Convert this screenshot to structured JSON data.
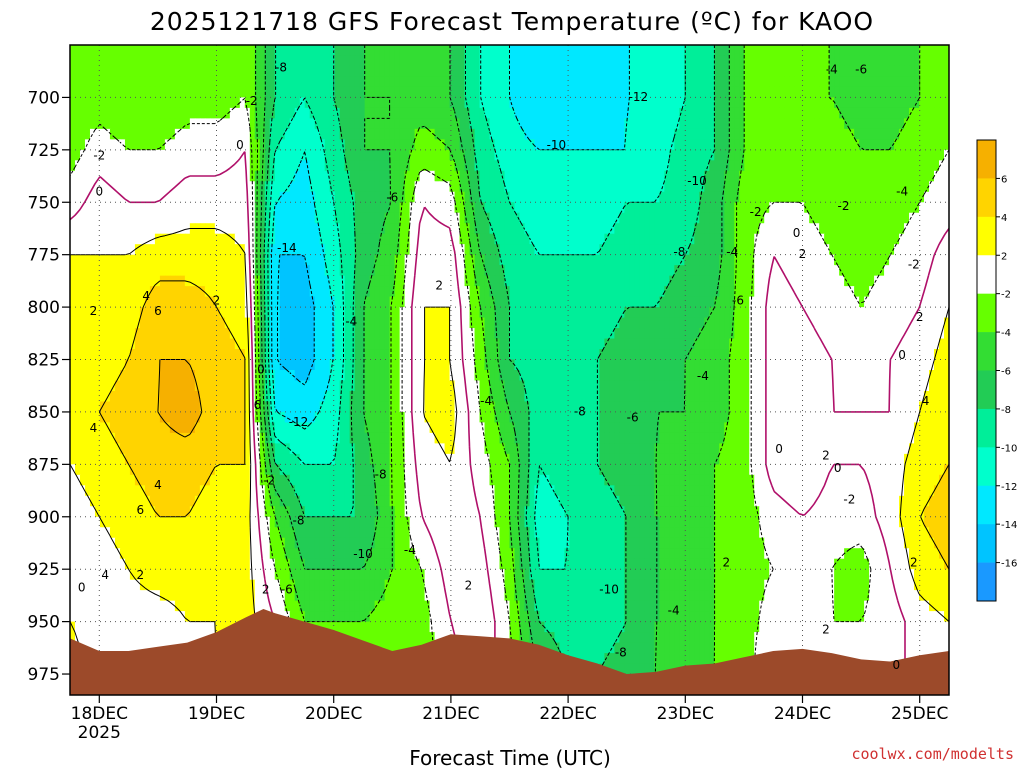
{
  "chart_data": {
    "type": "contour",
    "title": "2025121718 GFS Forecast Temperature (ºC) for KAOO",
    "xlabel": "Forecast Time (UTC)",
    "ylabel": "",
    "x_ticks": [
      "18DEC",
      "19DEC",
      "20DEC",
      "21DEC",
      "22DEC",
      "23DEC",
      "24DEC",
      "25DEC"
    ],
    "x_year_label": "2025",
    "y_ticks": [
      700,
      725,
      750,
      775,
      800,
      825,
      850,
      875,
      900,
      925,
      950,
      975
    ],
    "y_range": [
      675,
      985
    ],
    "x_range_days": [
      17.75,
      25.25
    ],
    "grid": true,
    "colorbar": {
      "labels": [
        "6",
        "4",
        "2",
        "-2",
        "-4",
        "-6",
        "-8",
        "-10",
        "-12",
        "-14",
        "-16"
      ],
      "colors": [
        "#f6b000",
        "#ffd400",
        "#ffff00",
        "#ffffff",
        "#66ff00",
        "#33dd33",
        "#22cc55",
        "#00ee99",
        "#00ffcc",
        "#00e8ff",
        "#00c4ff",
        "#1a99ff"
      ]
    },
    "profiles": [
      {
        "day": 17.75,
        "temps": [
          -4,
          -3,
          -1,
          2,
          2,
          3,
          3,
          2,
          1,
          1,
          2,
          3
        ]
      },
      {
        "day": 18.0,
        "temps": [
          -3,
          -1,
          1,
          2,
          3,
          3,
          4,
          3,
          2,
          1,
          1,
          1
        ]
      },
      {
        "day": 18.25,
        "temps": [
          -4,
          -2,
          0,
          2,
          3,
          4,
          5,
          4,
          3,
          2,
          1,
          0
        ]
      },
      {
        "day": 18.5,
        "temps": [
          -4,
          -2,
          0,
          3,
          5,
          6,
          6,
          5,
          4,
          3,
          1,
          0
        ]
      },
      {
        "day": 18.75,
        "temps": [
          -3,
          -1,
          1,
          3,
          5,
          6,
          7,
          5,
          4,
          3,
          2,
          1
        ]
      },
      {
        "day": 19.0,
        "temps": [
          -3,
          -1,
          1,
          3,
          4,
          5,
          5,
          4,
          3,
          3,
          2,
          2
        ]
      },
      {
        "day": 19.25,
        "temps": [
          -2,
          0,
          1,
          2,
          3,
          4,
          4,
          4,
          3,
          3,
          3,
          3
        ]
      },
      {
        "day": 19.5,
        "temps": [
          -8,
          -10,
          -12,
          -14,
          -14,
          -14,
          -12,
          -8,
          -4,
          -2,
          0,
          1
        ]
      },
      {
        "day": 19.75,
        "temps": [
          -10,
          -12,
          -13,
          -14,
          -15,
          -15,
          -13,
          -10,
          -8,
          -6,
          -4,
          -2
        ]
      },
      {
        "day": 20.0,
        "temps": [
          -8,
          -9,
          -10,
          -11,
          -12,
          -12,
          -11,
          -10,
          -8,
          -6,
          -4,
          -3
        ]
      },
      {
        "day": 20.25,
        "temps": [
          -6,
          -6,
          -7,
          -7,
          -6,
          -6,
          -6,
          -7,
          -8,
          -6,
          -4,
          -3
        ]
      },
      {
        "day": 20.5,
        "temps": [
          -6,
          -6,
          -6,
          -5,
          -4,
          -4,
          -4,
          -4,
          -4,
          -4,
          -3,
          -2
        ]
      },
      {
        "day": 20.75,
        "temps": [
          -5,
          -3,
          0,
          1,
          2,
          2,
          2,
          1,
          0,
          -2,
          -3,
          -3
        ]
      },
      {
        "day": 21.0,
        "temps": [
          -6,
          -4,
          -1,
          1,
          2,
          2,
          3,
          2,
          2,
          1,
          0,
          -1
        ]
      },
      {
        "day": 21.25,
        "temps": [
          -10,
          -9,
          -8,
          -6,
          -4,
          -3,
          -2,
          -1,
          0,
          1,
          2,
          1
        ]
      },
      {
        "day": 21.5,
        "temps": [
          -12,
          -11,
          -10,
          -9,
          -8,
          -8,
          -6,
          -4,
          -4,
          -3,
          -2,
          -1
        ]
      },
      {
        "day": 21.75,
        "temps": [
          -14,
          -12,
          -11,
          -10,
          -10,
          -9,
          -9,
          -10,
          -11,
          -10,
          -8,
          -6
        ]
      },
      {
        "day": 22.0,
        "temps": [
          -13,
          -12,
          -11,
          -10,
          -9,
          -9,
          -9,
          -9,
          -10,
          -10,
          -9,
          -8
        ]
      },
      {
        "day": 22.25,
        "temps": [
          -13,
          -12,
          -11,
          -10,
          -9,
          -8,
          -8,
          -8,
          -9,
          -9,
          -9,
          -8
        ]
      },
      {
        "day": 22.5,
        "temps": [
          -12,
          -12,
          -10,
          -9,
          -8,
          -7,
          -7,
          -7,
          -8,
          -8,
          -8,
          -7
        ]
      },
      {
        "day": 22.75,
        "temps": [
          -12,
          -11,
          -10,
          -9,
          -8,
          -7,
          -6,
          -6,
          -6,
          -6,
          -6,
          -6
        ]
      },
      {
        "day": 23.0,
        "temps": [
          -10,
          -9,
          -9,
          -8,
          -7,
          -6,
          -6,
          -5,
          -5,
          -5,
          -5,
          -4
        ]
      },
      {
        "day": 23.25,
        "temps": [
          -8,
          -8,
          -7,
          -7,
          -6,
          -5,
          -5,
          -4,
          -4,
          -4,
          -4,
          -4
        ]
      },
      {
        "day": 23.5,
        "temps": [
          -4,
          -4,
          -3,
          -3,
          -3,
          -3,
          -3,
          -3,
          -3,
          -3,
          -3,
          -3
        ]
      },
      {
        "day": 23.75,
        "temps": [
          -4,
          -3,
          -2,
          0,
          1,
          1,
          1,
          1,
          -1,
          -2,
          -1,
          0
        ]
      },
      {
        "day": 24.0,
        "temps": [
          -4,
          -3,
          -2,
          -1,
          0,
          1,
          2,
          2,
          0,
          -1,
          -1,
          0
        ]
      },
      {
        "day": 24.25,
        "temps": [
          -4,
          -3,
          -3,
          -2,
          -1,
          0,
          0,
          0,
          -1,
          -2,
          -2,
          -1
        ]
      },
      {
        "day": 24.5,
        "temps": [
          -5,
          -4,
          -3,
          -3,
          -2,
          -1,
          0,
          0,
          -1,
          -3,
          -2,
          0
        ]
      },
      {
        "day": 24.75,
        "temps": [
          -5,
          -4,
          -3,
          -2,
          -1,
          0,
          0,
          1,
          1,
          0,
          -1,
          0
        ]
      },
      {
        "day": 25.0,
        "temps": [
          -4,
          -3,
          -2,
          -1,
          0,
          1,
          2,
          3,
          4,
          3,
          1,
          0
        ]
      },
      {
        "day": 25.25,
        "temps": [
          -3,
          -2,
          -1,
          1,
          2,
          3,
          4,
          4,
          5,
          4,
          2,
          1
        ]
      }
    ],
    "surface_pressure": [
      {
        "day": 17.75,
        "hPa": 958
      },
      {
        "day": 18.0,
        "hPa": 964
      },
      {
        "day": 18.25,
        "hPa": 964
      },
      {
        "day": 18.5,
        "hPa": 962
      },
      {
        "day": 18.75,
        "hPa": 960
      },
      {
        "day": 19.0,
        "hPa": 955
      },
      {
        "day": 19.25,
        "hPa": 948
      },
      {
        "day": 19.4,
        "hPa": 944
      },
      {
        "day": 19.5,
        "hPa": 946
      },
      {
        "day": 19.75,
        "hPa": 950
      },
      {
        "day": 20.0,
        "hPa": 954
      },
      {
        "day": 20.25,
        "hPa": 959
      },
      {
        "day": 20.5,
        "hPa": 964
      },
      {
        "day": 20.75,
        "hPa": 961
      },
      {
        "day": 21.0,
        "hPa": 956
      },
      {
        "day": 21.25,
        "hPa": 957
      },
      {
        "day": 21.5,
        "hPa": 958
      },
      {
        "day": 21.75,
        "hPa": 961
      },
      {
        "day": 22.0,
        "hPa": 966
      },
      {
        "day": 22.25,
        "hPa": 970
      },
      {
        "day": 22.5,
        "hPa": 975
      },
      {
        "day": 22.75,
        "hPa": 974
      },
      {
        "day": 23.0,
        "hPa": 971
      },
      {
        "day": 23.25,
        "hPa": 970
      },
      {
        "day": 23.5,
        "hPa": 967
      },
      {
        "day": 23.75,
        "hPa": 964
      },
      {
        "day": 24.0,
        "hPa": 963
      },
      {
        "day": 24.25,
        "hPa": 965
      },
      {
        "day": 24.5,
        "hPa": 968
      },
      {
        "day": 24.75,
        "hPa": 969
      },
      {
        "day": 25.0,
        "hPa": 966
      },
      {
        "day": 25.25,
        "hPa": 964
      }
    ],
    "contour_labels": [
      {
        "text": "-8",
        "day": 19.55,
        "hPa": 686
      },
      {
        "text": "-2",
        "day": 19.3,
        "hPa": 702
      },
      {
        "text": "0",
        "day": 19.2,
        "hPa": 723
      },
      {
        "text": "-2",
        "day": 18.0,
        "hPa": 728
      },
      {
        "text": "0",
        "day": 18.0,
        "hPa": 745
      },
      {
        "text": "-14",
        "day": 19.6,
        "hPa": 772
      },
      {
        "text": "2",
        "day": 17.95,
        "hPa": 802
      },
      {
        "text": "4",
        "day": 18.4,
        "hPa": 795
      },
      {
        "text": "6",
        "day": 18.5,
        "hPa": 802
      },
      {
        "text": "2",
        "day": 19.0,
        "hPa": 797
      },
      {
        "text": "0",
        "day": 19.38,
        "hPa": 830
      },
      {
        "text": "6",
        "day": 19.35,
        "hPa": 847
      },
      {
        "text": "4",
        "day": 17.95,
        "hPa": 858
      },
      {
        "text": "4",
        "day": 18.5,
        "hPa": 885
      },
      {
        "text": "6",
        "day": 18.35,
        "hPa": 897
      },
      {
        "text": "-12",
        "day": 19.7,
        "hPa": 855
      },
      {
        "text": "-2",
        "day": 19.45,
        "hPa": 883
      },
      {
        "text": "-8",
        "day": 19.7,
        "hPa": 902
      },
      {
        "text": "-10",
        "day": 20.25,
        "hPa": 918
      },
      {
        "text": "-6",
        "day": 19.6,
        "hPa": 935
      },
      {
        "text": "2",
        "day": 19.42,
        "hPa": 935
      },
      {
        "text": "0",
        "day": 17.85,
        "hPa": 934
      },
      {
        "text": "4",
        "day": 18.05,
        "hPa": 928
      },
      {
        "text": "2",
        "day": 18.35,
        "hPa": 928
      },
      {
        "text": "-6",
        "day": 20.5,
        "hPa": 748
      },
      {
        "text": "-4",
        "day": 20.15,
        "hPa": 807
      },
      {
        "text": "-8",
        "day": 20.4,
        "hPa": 880
      },
      {
        "text": "-4",
        "day": 20.65,
        "hPa": 916
      },
      {
        "text": "2",
        "day": 20.9,
        "hPa": 790
      },
      {
        "text": "-4",
        "day": 21.3,
        "hPa": 845
      },
      {
        "text": "2",
        "day": 21.15,
        "hPa": 933
      },
      {
        "text": "-10",
        "day": 21.9,
        "hPa": 723
      },
      {
        "text": "-12",
        "day": 22.6,
        "hPa": 700
      },
      {
        "text": "-10",
        "day": 23.1,
        "hPa": 740
      },
      {
        "text": "-8",
        "day": 22.95,
        "hPa": 774
      },
      {
        "text": "-4",
        "day": 23.4,
        "hPa": 774
      },
      {
        "text": "-6",
        "day": 23.45,
        "hPa": 797
      },
      {
        "text": "-4",
        "day": 23.15,
        "hPa": 833
      },
      {
        "text": "-8",
        "day": 22.1,
        "hPa": 850
      },
      {
        "text": "-6",
        "day": 22.55,
        "hPa": 853
      },
      {
        "text": "-10",
        "day": 22.35,
        "hPa": 935
      },
      {
        "text": "-4",
        "day": 22.9,
        "hPa": 945
      },
      {
        "text": "-8",
        "day": 22.45,
        "hPa": 965
      },
      {
        "text": "2",
        "day": 23.35,
        "hPa": 922
      },
      {
        "text": "-2",
        "day": 23.6,
        "hPa": 755
      },
      {
        "text": "0",
        "day": 23.95,
        "hPa": 765
      },
      {
        "text": "-4",
        "day": 24.25,
        "hPa": 687
      },
      {
        "text": "-6",
        "day": 24.5,
        "hPa": 687
      },
      {
        "text": "-2",
        "day": 24.35,
        "hPa": 752
      },
      {
        "text": "-4",
        "day": 24.85,
        "hPa": 745
      },
      {
        "text": "-2",
        "day": 24.95,
        "hPa": 780
      },
      {
        "text": "2",
        "day": 24.0,
        "hPa": 775
      },
      {
        "text": "2",
        "day": 25.0,
        "hPa": 805
      },
      {
        "text": "0",
        "day": 24.85,
        "hPa": 823
      },
      {
        "text": "4",
        "day": 25.05,
        "hPa": 845
      },
      {
        "text": "0",
        "day": 23.8,
        "hPa": 868
      },
      {
        "text": "2",
        "day": 24.2,
        "hPa": 871
      },
      {
        "text": "0",
        "day": 24.3,
        "hPa": 877
      },
      {
        "text": "-2",
        "day": 24.4,
        "hPa": 892
      },
      {
        "text": "2",
        "day": 24.95,
        "hPa": 922
      },
      {
        "text": "2",
        "day": 24.2,
        "hPa": 954
      },
      {
        "text": "0",
        "day": 24.8,
        "hPa": 971
      }
    ],
    "credit": "coolwx.com/modelts"
  }
}
